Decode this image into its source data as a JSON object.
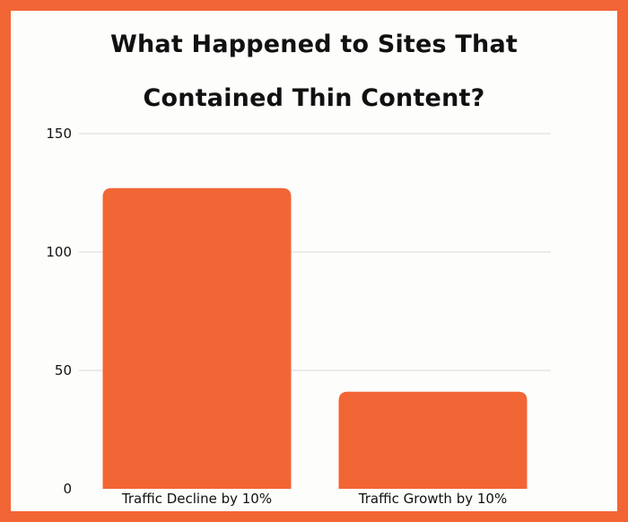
{
  "title_lines": [
    "What Happened to Sites That",
    "Contained Thin Content?"
  ],
  "colors": {
    "border": "#f26535",
    "background": "#fdfdfb",
    "bar": "#f26535",
    "grid": "#d9d9d9",
    "text": "#111111"
  },
  "chart_data": {
    "type": "bar",
    "title": "What Happened to Sites That Contained Thin Content?",
    "categories": [
      "Traffic Decline by 10%",
      "Traffic Growth by 10%"
    ],
    "values": [
      127,
      41
    ],
    "ylim": [
      0,
      150
    ],
    "yticks": [
      0,
      50,
      100,
      150
    ],
    "xlabel": "",
    "ylabel": "",
    "grid": true,
    "legend": "none"
  }
}
